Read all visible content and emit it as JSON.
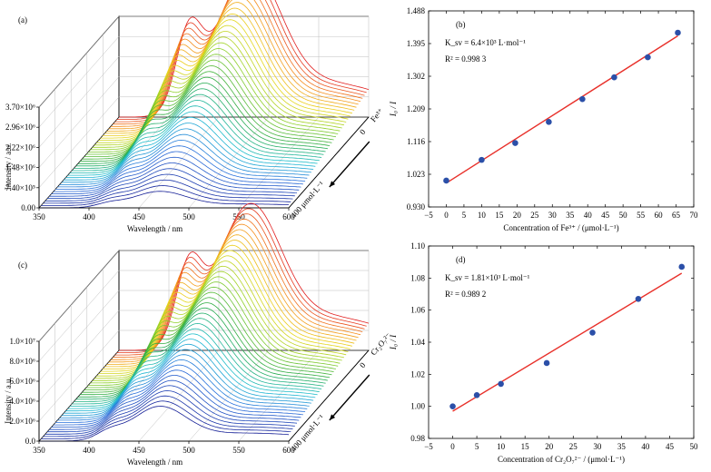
{
  "chart_data": [
    {
      "panel": "(a)",
      "type": "line",
      "view": "3d-waterfall",
      "xlabel": "Wavelength / nm",
      "ylabel": "Intensity / a.u.",
      "x_ticks": [
        "350",
        "400",
        "450",
        "500",
        "550",
        "600"
      ],
      "y_ticks": [
        "0.00",
        "7.40×10⁵",
        "1.48×10⁶",
        "2.22×10⁶",
        "2.96×10⁶",
        "3.70×10⁶"
      ],
      "xlim": [
        350,
        600
      ],
      "ylim": [
        0,
        3700000
      ],
      "depth_labels": {
        "species": "Fe³⁺",
        "start": "0",
        "end": "400 μmol·L⁻¹"
      },
      "n_curves": 40,
      "peak_wavelength_nm": 470,
      "shoulder_wavelength_nm": 420,
      "curve_colors": "blue (0 μmol·L⁻¹) → cyan → green → yellow → red (400 μmol·L⁻¹)"
    },
    {
      "panel": "(b)",
      "type": "scatter",
      "fit": "linear",
      "xlabel": "Concentration of Fe³⁺ / (μmol·L⁻¹)",
      "ylabel": "I₀ / I",
      "x_ticks": [
        "−5",
        "0",
        "5",
        "10",
        "15",
        "20",
        "25",
        "30",
        "35",
        "40",
        "45",
        "50",
        "55",
        "60",
        "65",
        "70"
      ],
      "y_ticks": [
        "0.930",
        "1.023",
        "1.116",
        "1.209",
        "1.302",
        "1.395",
        "1.488"
      ],
      "xlim": [
        -5,
        70
      ],
      "ylim": [
        0.93,
        1.488
      ],
      "x": [
        0,
        10,
        19.5,
        29,
        38.5,
        47.5,
        57,
        65.5
      ],
      "y": [
        1.005,
        1.064,
        1.112,
        1.172,
        1.237,
        1.299,
        1.356,
        1.426
      ],
      "fit_line": {
        "x": [
          0,
          65.5
        ],
        "y": [
          0.998,
          1.417
        ]
      },
      "annotations": [
        "K_sv = 6.4×10³ L·mol⁻¹",
        "R² = 0.998 3"
      ]
    },
    {
      "panel": "(c)",
      "type": "line",
      "view": "3d-waterfall",
      "xlabel": "Wavelength / nm",
      "ylabel": "Intensity / a.u.",
      "x_ticks": [
        "350",
        "400",
        "450",
        "500",
        "550",
        "600"
      ],
      "y_ticks": [
        "0.0",
        "2.0×10⁶",
        "4.0×10⁶",
        "6.0×10⁶",
        "8.0×10⁶",
        "1.0×10⁷"
      ],
      "xlim": [
        350,
        600
      ],
      "ylim": [
        0,
        10000000
      ],
      "depth_labels": {
        "species": "Cr₂O₇²⁻",
        "start": "0",
        "end": "400 μmol·L⁻¹"
      },
      "n_curves": 40,
      "peak_wavelength_nm": 470,
      "shoulder_wavelength_nm": 420,
      "curve_colors": "blue (0 μmol·L⁻¹) → cyan → green → yellow → red (400 μmol·L⁻¹)"
    },
    {
      "panel": "(d)",
      "type": "scatter",
      "fit": "linear",
      "xlabel": "Concentration of Cr₂O₇²⁻ / (μmol·L⁻¹)",
      "ylabel": "I₀ / I",
      "x_ticks": [
        "−5",
        "0",
        "5",
        "10",
        "15",
        "20",
        "25",
        "30",
        "35",
        "40",
        "45",
        "50"
      ],
      "y_ticks": [
        "0.98",
        "1.00",
        "1.02",
        "1.04",
        "1.06",
        "1.08",
        "1.10"
      ],
      "xlim": [
        -5,
        50
      ],
      "ylim": [
        0.98,
        1.1
      ],
      "x": [
        0,
        5,
        10,
        19.5,
        29,
        38.5,
        47.5
      ],
      "y": [
        1.0,
        1.007,
        1.014,
        1.027,
        1.046,
        1.067,
        1.087
      ],
      "fit_line": {
        "x": [
          0,
          47.5
        ],
        "y": [
          0.997,
          1.083
        ]
      },
      "annotations": [
        "K_sv = 1.81×10³ L·mol⁻¹",
        "R² = 0.989 2"
      ]
    }
  ],
  "colors": {
    "fit_line": "#e8302a",
    "points": "#2b4fa8"
  }
}
